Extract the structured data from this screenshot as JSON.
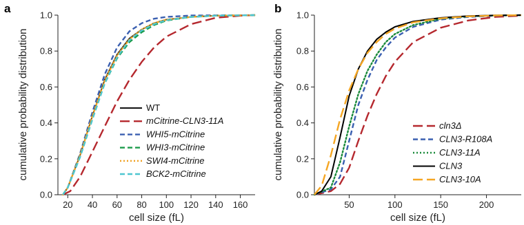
{
  "chart_data": [
    {
      "panel": "a",
      "type": "line",
      "xlabel": "cell size (fL)",
      "ylabel": "cumulative probability distribution",
      "xlim": [
        12,
        172
      ],
      "ylim": [
        0,
        1.0
      ],
      "xticks": [
        20,
        40,
        60,
        80,
        100,
        120,
        140,
        160
      ],
      "yticks": [
        0.0,
        0.2,
        0.4,
        0.6,
        0.8,
        1.0
      ],
      "grid": false,
      "legend_position": "bottom-right",
      "series": [
        {
          "name": "WT",
          "italic": false,
          "color": "#111111",
          "dash": "solid",
          "points": [
            [
              16,
              0
            ],
            [
              20,
              0.04
            ],
            [
              30,
              0.22
            ],
            [
              40,
              0.44
            ],
            [
              50,
              0.64
            ],
            [
              60,
              0.78
            ],
            [
              70,
              0.87
            ],
            [
              80,
              0.92
            ],
            [
              90,
              0.955
            ],
            [
              100,
              0.975
            ],
            [
              120,
              0.99
            ],
            [
              140,
              0.997
            ],
            [
              172,
              1.0
            ]
          ]
        },
        {
          "name": "mCitrine-CLN3-11A",
          "italic": true,
          "color": "#b5282e",
          "dash": "longdash",
          "points": [
            [
              16,
              0
            ],
            [
              22,
              0.02
            ],
            [
              30,
              0.1
            ],
            [
              40,
              0.24
            ],
            [
              50,
              0.38
            ],
            [
              60,
              0.52
            ],
            [
              70,
              0.64
            ],
            [
              80,
              0.74
            ],
            [
              90,
              0.82
            ],
            [
              100,
              0.88
            ],
            [
              120,
              0.95
            ],
            [
              140,
              0.985
            ],
            [
              160,
              0.997
            ],
            [
              172,
              1.0
            ]
          ]
        },
        {
          "name": "WHI5-mCitrine",
          "italic": true,
          "color": "#3a5fb0",
          "dash": "dash",
          "points": [
            [
              16,
              0
            ],
            [
              20,
              0.04
            ],
            [
              30,
              0.23
            ],
            [
              40,
              0.46
            ],
            [
              50,
              0.67
            ],
            [
              60,
              0.82
            ],
            [
              70,
              0.91
            ],
            [
              80,
              0.955
            ],
            [
              90,
              0.98
            ],
            [
              100,
              0.99
            ],
            [
              120,
              0.998
            ],
            [
              172,
              1.0
            ]
          ]
        },
        {
          "name": "WHI3-mCitrine",
          "italic": true,
          "color": "#1a9a4a",
          "dash": "dash",
          "points": [
            [
              16,
              0
            ],
            [
              20,
              0.04
            ],
            [
              30,
              0.22
            ],
            [
              40,
              0.43
            ],
            [
              50,
              0.62
            ],
            [
              60,
              0.76
            ],
            [
              70,
              0.85
            ],
            [
              80,
              0.905
            ],
            [
              90,
              0.945
            ],
            [
              100,
              0.97
            ],
            [
              120,
              0.99
            ],
            [
              140,
              0.997
            ],
            [
              172,
              1.0
            ]
          ]
        },
        {
          "name": "SWI4-mCitrine",
          "italic": true,
          "color": "#f0a020",
          "dash": "dot",
          "points": [
            [
              16,
              0
            ],
            [
              20,
              0.04
            ],
            [
              30,
              0.22
            ],
            [
              40,
              0.44
            ],
            [
              50,
              0.635
            ],
            [
              60,
              0.775
            ],
            [
              70,
              0.865
            ],
            [
              80,
              0.92
            ],
            [
              90,
              0.955
            ],
            [
              100,
              0.975
            ],
            [
              120,
              0.99
            ],
            [
              140,
              0.997
            ],
            [
              172,
              1.0
            ]
          ]
        },
        {
          "name": "BCK2-mCitrine",
          "italic": true,
          "color": "#4ec6d0",
          "dash": "dash",
          "points": [
            [
              16,
              0
            ],
            [
              20,
              0.04
            ],
            [
              30,
              0.21
            ],
            [
              40,
              0.42
            ],
            [
              50,
              0.62
            ],
            [
              60,
              0.765
            ],
            [
              70,
              0.86
            ],
            [
              80,
              0.915
            ],
            [
              90,
              0.95
            ],
            [
              100,
              0.972
            ],
            [
              120,
              0.99
            ],
            [
              140,
              0.997
            ],
            [
              172,
              1.0
            ]
          ]
        }
      ]
    },
    {
      "panel": "b",
      "type": "line",
      "xlabel": "cell size (fL)",
      "ylabel": "cumulative probability distribution",
      "xlim": [
        12,
        238
      ],
      "ylim": [
        0,
        1.0
      ],
      "xticks": [
        50,
        100,
        150,
        200
      ],
      "yticks": [
        0.0,
        0.2,
        0.4,
        0.6,
        0.8,
        1.0
      ],
      "grid": false,
      "legend_position": "bottom-right",
      "series": [
        {
          "name": "cln3Δ",
          "italic": true,
          "color": "#b5282e",
          "dash": "longdash",
          "points": [
            [
              12,
              0
            ],
            [
              30,
              0.02
            ],
            [
              40,
              0.06
            ],
            [
              50,
              0.15
            ],
            [
              60,
              0.3
            ],
            [
              70,
              0.44
            ],
            [
              80,
              0.56
            ],
            [
              90,
              0.66
            ],
            [
              100,
              0.74
            ],
            [
              120,
              0.85
            ],
            [
              150,
              0.93
            ],
            [
              180,
              0.97
            ],
            [
              210,
              0.99
            ],
            [
              238,
              0.997
            ]
          ]
        },
        {
          "name": "CLN3-R108A",
          "italic": true,
          "color": "#3a5fb0",
          "dash": "dash",
          "points": [
            [
              12,
              0
            ],
            [
              30,
              0.03
            ],
            [
              40,
              0.1
            ],
            [
              50,
              0.3
            ],
            [
              60,
              0.5
            ],
            [
              70,
              0.64
            ],
            [
              80,
              0.75
            ],
            [
              90,
              0.82
            ],
            [
              100,
              0.875
            ],
            [
              120,
              0.935
            ],
            [
              150,
              0.975
            ],
            [
              180,
              0.99
            ],
            [
              210,
              0.997
            ],
            [
              238,
              1.0
            ]
          ]
        },
        {
          "name": "CLN3-11A",
          "italic": true,
          "color": "#1a8a3a",
          "dash": "dot",
          "points": [
            [
              12,
              0
            ],
            [
              30,
              0.04
            ],
            [
              40,
              0.18
            ],
            [
              50,
              0.38
            ],
            [
              60,
              0.56
            ],
            [
              70,
              0.69
            ],
            [
              80,
              0.78
            ],
            [
              90,
              0.85
            ],
            [
              100,
              0.895
            ],
            [
              120,
              0.945
            ],
            [
              150,
              0.98
            ],
            [
              180,
              0.993
            ],
            [
              210,
              0.998
            ],
            [
              238,
              1.0
            ]
          ]
        },
        {
          "name": "CLN3",
          "italic": true,
          "color": "#000000",
          "dash": "solid",
          "points": [
            [
              12,
              0
            ],
            [
              20,
              0.02
            ],
            [
              30,
              0.1
            ],
            [
              40,
              0.32
            ],
            [
              50,
              0.55
            ],
            [
              60,
              0.7
            ],
            [
              70,
              0.8
            ],
            [
              80,
              0.865
            ],
            [
              90,
              0.905
            ],
            [
              100,
              0.935
            ],
            [
              120,
              0.965
            ],
            [
              150,
              0.985
            ],
            [
              180,
              0.995
            ],
            [
              210,
              0.999
            ],
            [
              238,
              1.0
            ]
          ]
        },
        {
          "name": "CLN3-10A",
          "italic": true,
          "color": "#f5a623",
          "dash": "longdash",
          "points": [
            [
              12,
              0
            ],
            [
              20,
              0.05
            ],
            [
              30,
              0.22
            ],
            [
              40,
              0.42
            ],
            [
              50,
              0.58
            ],
            [
              60,
              0.7
            ],
            [
              70,
              0.79
            ],
            [
              80,
              0.85
            ],
            [
              90,
              0.895
            ],
            [
              100,
              0.925
            ],
            [
              120,
              0.96
            ],
            [
              150,
              0.982
            ],
            [
              180,
              0.993
            ],
            [
              210,
              0.998
            ],
            [
              238,
              1.0
            ]
          ]
        }
      ]
    }
  ]
}
